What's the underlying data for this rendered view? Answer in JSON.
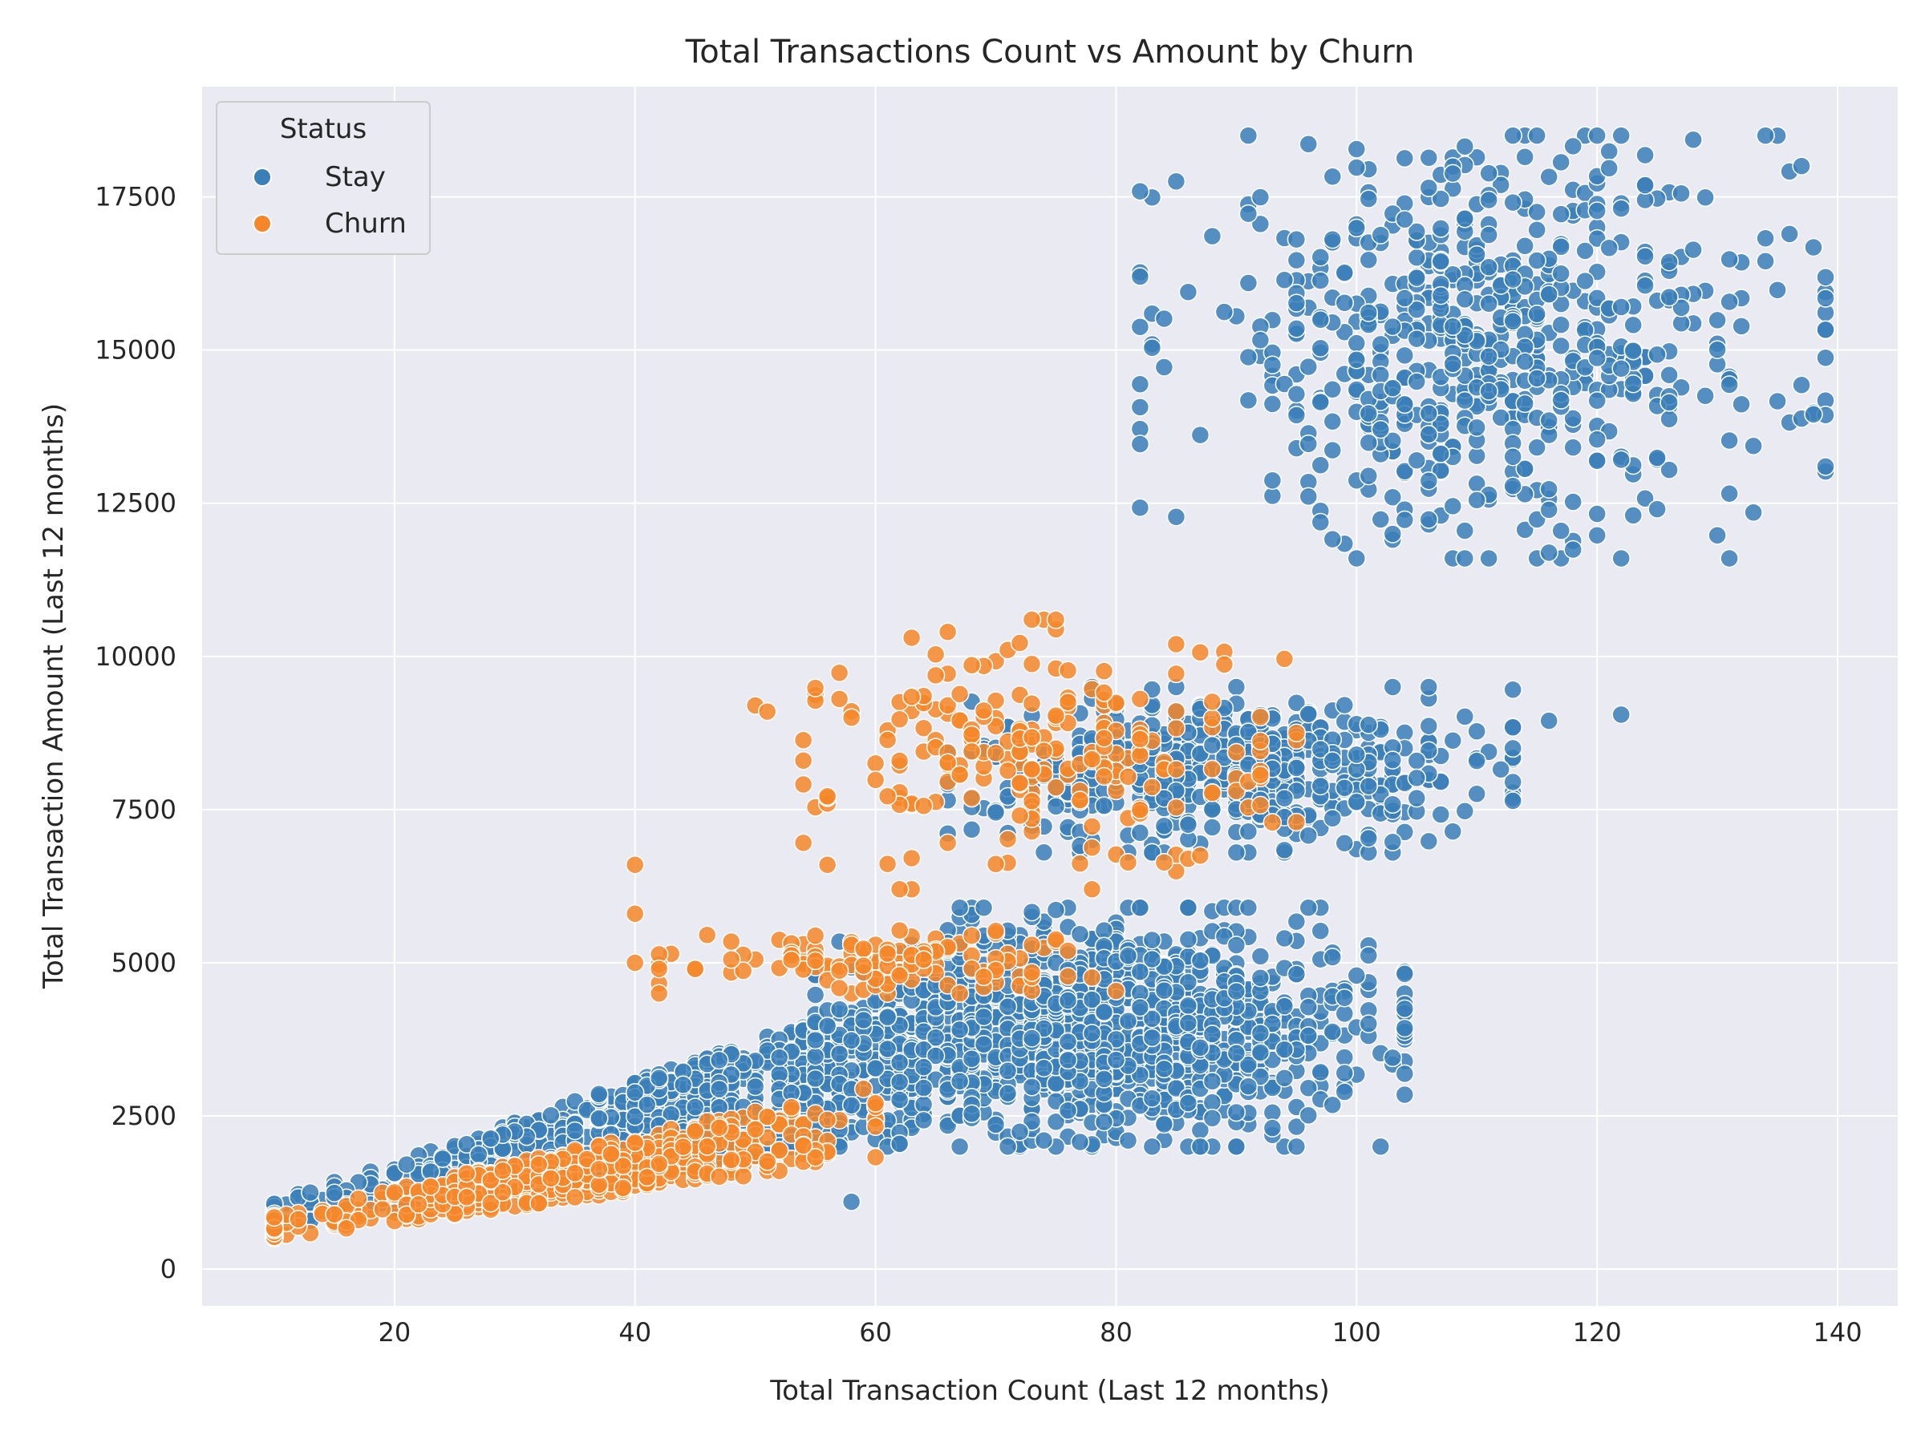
{
  "chart_data": {
    "type": "scatter",
    "title": "Total Transactions Count vs Amount by Churn",
    "xlabel": "Total Transaction Count (Last 12 months)",
    "ylabel": "Total Transaction Amount (Last 12 months)",
    "xlim": [
      4,
      145
    ],
    "ylim": [
      -600,
      19300
    ],
    "xticks": [
      20,
      40,
      60,
      80,
      100,
      120,
      140
    ],
    "yticks": [
      0,
      2500,
      5000,
      7500,
      10000,
      12500,
      15000,
      17500
    ],
    "grid": true,
    "legend": {
      "title": "Status",
      "position": "top-left"
    },
    "series": [
      {
        "name": "Stay",
        "color": "#3b7fb8"
      },
      {
        "name": "Churn",
        "color": "#f5872a"
      }
    ],
    "clusters": [
      {
        "series": "Stay",
        "count": 900,
        "x_range": [
          10,
          80
        ],
        "y_at_x_min": [
          700,
          1100
        ],
        "y_at_x_max": [
          2700,
          5700
        ]
      },
      {
        "series": "Stay",
        "count": 1100,
        "x_range": [
          55,
          104
        ],
        "y_range": [
          2000,
          5900
        ]
      },
      {
        "series": "Stay",
        "count": 550,
        "x_range": [
          66,
          113
        ],
        "y_range": [
          6800,
          9500
        ]
      },
      {
        "series": "Stay",
        "count": 650,
        "x_range": [
          82,
          139
        ],
        "y_range": [
          11600,
          18500
        ]
      },
      {
        "series": "Churn",
        "count": 500,
        "x_range": [
          10,
          60
        ],
        "y_at_x_min": [
          500,
          900
        ],
        "y_at_x_max": [
          1800,
          3000
        ]
      },
      {
        "series": "Churn",
        "count": 120,
        "x_range": [
          42,
          80
        ],
        "y_range": [
          4500,
          5600
        ]
      },
      {
        "series": "Churn",
        "count": 220,
        "x_range": [
          54,
          95
        ],
        "y_range": [
          6200,
          10600
        ]
      }
    ],
    "outliers": {
      "Stay": [
        [
          58,
          1100
        ],
        [
          81,
          2100
        ],
        [
          99,
          3200
        ],
        [
          103,
          3450
        ],
        [
          104,
          4850
        ],
        [
          104,
          4820
        ],
        [
          106,
          9500
        ],
        [
          116,
          8950
        ],
        [
          122,
          9050
        ],
        [
          109,
          11600
        ],
        [
          117,
          12050
        ],
        [
          103,
          12000
        ],
        [
          138,
          13950
        ],
        [
          139,
          13100
        ]
      ],
      "Churn": [
        [
          40,
          6600
        ],
        [
          40,
          5800
        ],
        [
          40,
          5000
        ],
        [
          42,
          4900
        ],
        [
          45,
          4900
        ],
        [
          50,
          9200
        ],
        [
          51,
          9100
        ],
        [
          54,
          8300
        ],
        [
          56,
          6600
        ],
        [
          75,
          10600
        ],
        [
          85,
          10200
        ],
        [
          66,
          10400
        ]
      ]
    }
  }
}
